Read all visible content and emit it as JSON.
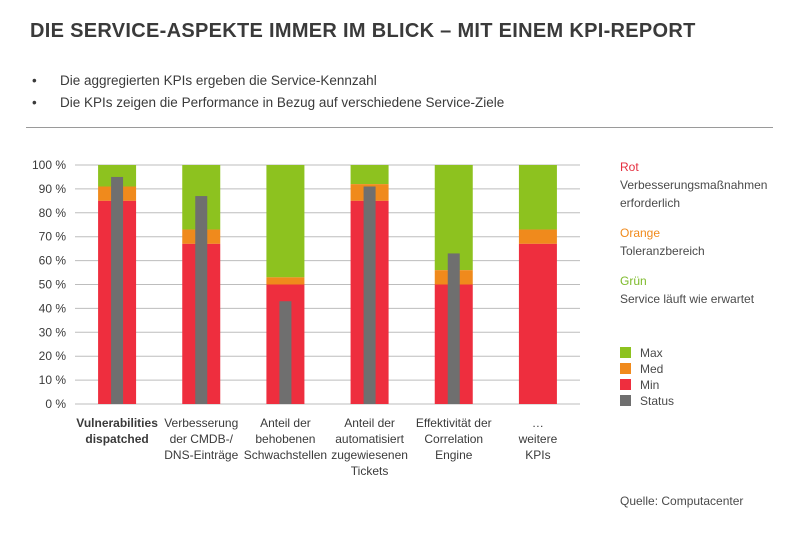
{
  "title": "DIE SERVICE-ASPEKTE IMMER IM BLICK – MIT EINEM KPI-REPORT",
  "bullets": [
    "Die aggregierten KPIs ergeben die Service-Kennzahl",
    "Die KPIs zeigen die Performance in Bezug auf verschiedene Service-Ziele"
  ],
  "bullet_symbol": "•",
  "colors": {
    "max": "#8dc21f",
    "med": "#f08a1c",
    "min": "#ee2e3e",
    "status": "#6f6f6f",
    "text": "#3a3a3a"
  },
  "legend_info": [
    {
      "heading": "Rot",
      "color": "#e52e3f",
      "lines": [
        "Verbesserungsmaßnahmen",
        "erforderlich"
      ]
    },
    {
      "heading": "Orange",
      "color": "#f08a1c",
      "lines": [
        "Toleranzbereich"
      ]
    },
    {
      "heading": "Grün",
      "color": "#7dba2a",
      "lines": [
        "Service läuft wie erwartet"
      ]
    }
  ],
  "source": "Quelle: Computacenter",
  "chart_data": {
    "type": "bar",
    "title": "",
    "xlabel": "",
    "ylabel": "",
    "ylim": [
      0,
      100
    ],
    "yticks": [
      "0 %",
      "10 %",
      "20 %",
      "30 %",
      "40 %",
      "50 %",
      "60 %",
      "70 %",
      "80 %",
      "90 %",
      "100 %"
    ],
    "categories": [
      [
        "Vulnerabilities",
        "dispatched"
      ],
      [
        "Verbesserung",
        "der CMDB-/",
        "DNS-Einträge"
      ],
      [
        "Anteil der",
        "behobenen",
        "Schwachstellen"
      ],
      [
        "Anteil der",
        "automatisiert",
        "zugewiesenen",
        "Tickets"
      ],
      [
        "Effektivität der",
        "Correlation",
        "Engine"
      ],
      [
        "…",
        "weitere",
        "KPIs"
      ]
    ],
    "category_bold": [
      true,
      false,
      false,
      false,
      false,
      false
    ],
    "series": [
      {
        "name": "Min",
        "values": [
          85,
          67,
          50,
          85,
          50,
          67
        ]
      },
      {
        "name": "Med",
        "values": [
          91,
          73,
          53,
          92,
          56,
          73
        ]
      },
      {
        "name": "Max",
        "values": [
          100,
          100,
          100,
          100,
          100,
          100
        ]
      },
      {
        "name": "Status",
        "values": [
          95,
          87,
          43,
          91,
          63,
          null
        ]
      }
    ],
    "legend": [
      "Max",
      "Med",
      "Min",
      "Status"
    ]
  }
}
